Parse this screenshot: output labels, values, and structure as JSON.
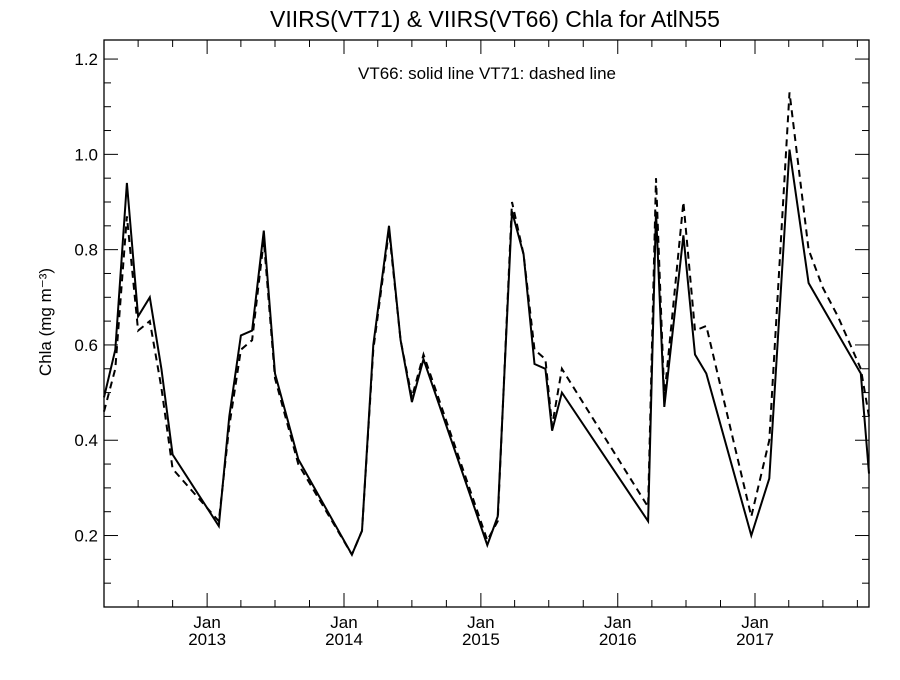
{
  "chart_data": {
    "type": "line",
    "title": "VIIRS(VT71) & VIIRS(VT66)  Chla for AtlN55",
    "annotation": "VT66: solid line   VT71: dashed line",
    "ylabel": "Chla (mg m⁻³)",
    "xlabel": "",
    "ylim": [
      0.05,
      1.24
    ],
    "xlim": [
      "2012-04-01",
      "2017-11-01"
    ],
    "yticks": [
      "0.2",
      "0.4",
      "0.6",
      "0.8",
      "1.0",
      "1.2"
    ],
    "xticks": [
      {
        "date": "2013-01-01",
        "month": "Jan",
        "year": "2013"
      },
      {
        "date": "2014-01-01",
        "month": "Jan",
        "year": "2014"
      },
      {
        "date": "2015-01-01",
        "month": "Jan",
        "year": "2015"
      },
      {
        "date": "2016-01-01",
        "month": "Jan",
        "year": "2016"
      },
      {
        "date": "2017-01-01",
        "month": "Jan",
        "year": "2017"
      }
    ],
    "series": [
      {
        "name": "VT66",
        "style": "solid",
        "x": [
          "2012-04-01",
          "2012-05-01",
          "2012-06-01",
          "2012-07-01",
          "2012-08-01",
          "2012-09-01",
          "2012-10-01",
          "2013-02-01",
          "2013-03-01",
          "2013-04-01",
          "2013-05-01",
          "2013-06-01",
          "2013-07-01",
          "2013-09-01",
          "2014-01-22",
          "2014-02-18",
          "2014-03-20",
          "2014-05-01",
          "2014-06-01",
          "2014-07-01",
          "2014-08-01",
          "2015-01-18",
          "2015-02-15",
          "2015-03-25",
          "2015-04-25",
          "2015-05-24",
          "2015-06-22",
          "2015-07-10",
          "2015-08-05",
          "2016-03-22",
          "2016-04-12",
          "2016-05-04",
          "2016-06-24",
          "2016-07-25",
          "2016-08-24",
          "2016-12-22",
          "2017-02-08",
          "2017-04-03",
          "2017-05-24",
          "2017-10-10",
          "2017-11-01"
        ],
        "y": [
          0.49,
          0.59,
          0.94,
          0.66,
          0.7,
          0.55,
          0.37,
          0.22,
          0.45,
          0.62,
          0.63,
          0.84,
          0.54,
          0.36,
          0.16,
          0.21,
          0.6,
          0.85,
          0.61,
          0.48,
          0.57,
          0.18,
          0.24,
          0.88,
          0.79,
          0.56,
          0.55,
          0.42,
          0.5,
          0.23,
          0.88,
          0.47,
          0.83,
          0.58,
          0.54,
          0.2,
          0.32,
          1.01,
          0.73,
          0.54,
          0.33
        ]
      },
      {
        "name": "VT71",
        "style": "dashed",
        "x": [
          "2012-04-01",
          "2012-05-01",
          "2012-06-01",
          "2012-07-01",
          "2012-08-01",
          "2012-09-01",
          "2012-10-01",
          "2013-02-01",
          "2013-03-01",
          "2013-04-01",
          "2013-05-01",
          "2013-06-01",
          "2013-07-01",
          "2013-09-01",
          "2014-01-22",
          "2014-02-18",
          "2014-03-20",
          "2014-05-01",
          "2014-06-01",
          "2014-07-01",
          "2014-08-01",
          "2015-01-18",
          "2015-02-15",
          "2015-03-25",
          "2015-04-25",
          "2015-05-24",
          "2015-06-22",
          "2015-07-10",
          "2015-08-05",
          "2016-03-22",
          "2016-04-12",
          "2016-05-04",
          "2016-06-24",
          "2016-07-25",
          "2016-08-24",
          "2016-12-22",
          "2017-02-08",
          "2017-04-03",
          "2017-05-24",
          "2017-07-01",
          "2017-08-10",
          "2017-10-10",
          "2017-11-01"
        ],
        "y": [
          0.46,
          0.55,
          0.87,
          0.63,
          0.65,
          0.51,
          0.34,
          0.23,
          0.43,
          0.59,
          0.61,
          0.82,
          0.53,
          0.35,
          0.16,
          0.21,
          0.59,
          0.84,
          0.61,
          0.49,
          0.58,
          0.19,
          0.23,
          0.9,
          0.79,
          0.59,
          0.57,
          0.43,
          0.55,
          0.26,
          0.95,
          0.49,
          0.9,
          0.63,
          0.64,
          0.24,
          0.4,
          1.13,
          0.8,
          0.72,
          0.66,
          0.55,
          0.45
        ]
      }
    ]
  }
}
